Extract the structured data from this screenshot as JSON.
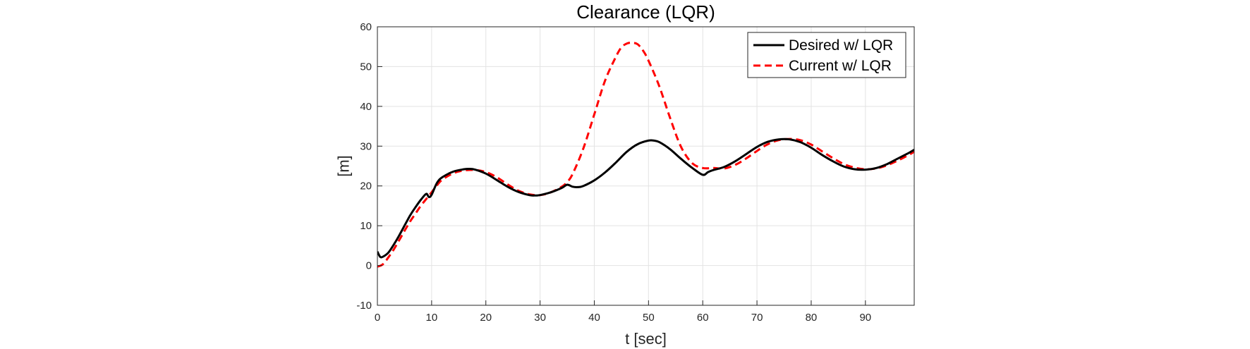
{
  "chart_data": {
    "type": "line",
    "title": "Clearance (LQR)",
    "xlabel": "t [sec]",
    "ylabel": "[m]",
    "xlim": [
      0,
      99
    ],
    "ylim": [
      -10,
      60
    ],
    "xticks": [
      0,
      10,
      20,
      30,
      40,
      50,
      60,
      70,
      80,
      90
    ],
    "yticks": [
      -10,
      0,
      10,
      20,
      30,
      40,
      50,
      60
    ],
    "grid": true,
    "legend_position": "top-right",
    "series": [
      {
        "name": "Desired w/ LQR",
        "color": "#000000",
        "style": "solid",
        "x": [
          0,
          0.5,
          1,
          2,
          3,
          4,
          5,
          6,
          7,
          8,
          9,
          9.5,
          10,
          11,
          12,
          14,
          16,
          17,
          18,
          20,
          22,
          24,
          26,
          28,
          29,
          30,
          32,
          34,
          35,
          36,
          37,
          38,
          40,
          42,
          44,
          46,
          48,
          50,
          51,
          52,
          54,
          56,
          58,
          60,
          61,
          62,
          64,
          66,
          68,
          70,
          72,
          74,
          76,
          78,
          80,
          82,
          84,
          86,
          88,
          90,
          92,
          94,
          96,
          98,
          99
        ],
        "y": [
          3.5,
          2.2,
          2.2,
          3.2,
          5.2,
          7.5,
          10,
          12.5,
          14.6,
          16.5,
          18,
          17.2,
          17.8,
          20.8,
          22.2,
          23.6,
          24.2,
          24.3,
          24.1,
          23.1,
          21.5,
          19.8,
          18.5,
          17.7,
          17.6,
          17.7,
          18.4,
          19.5,
          20.3,
          19.8,
          19.7,
          20,
          21.4,
          23.4,
          25.9,
          28.6,
          30.5,
          31.4,
          31.4,
          31,
          29.2,
          26.8,
          24.6,
          22.8,
          23.5,
          24,
          24.8,
          26.2,
          28,
          29.8,
          31.1,
          31.7,
          31.7,
          31,
          29.6,
          27.8,
          26.2,
          24.9,
          24.2,
          24.1,
          24.5,
          25.5,
          26.9,
          28.3,
          29.1
        ]
      },
      {
        "name": "Current w/ LQR",
        "color": "#ff0000",
        "style": "dashed",
        "x": [
          0,
          1,
          2,
          3,
          4,
          5,
          6,
          7,
          8,
          9,
          10,
          11,
          12,
          14,
          16,
          18,
          20,
          22,
          24,
          26,
          28,
          30,
          32,
          34,
          35,
          36,
          38,
          40,
          42,
          44,
          45,
          46,
          47,
          48,
          49,
          50,
          52,
          54,
          56,
          58,
          60,
          62,
          64,
          66,
          68,
          70,
          72,
          74,
          76,
          78,
          80,
          82,
          84,
          86,
          88,
          90,
          92,
          94,
          96,
          98,
          99
        ],
        "y": [
          -0.3,
          0.3,
          2,
          4,
          6.3,
          8.7,
          11,
          13,
          15,
          16.7,
          18.4,
          20.2,
          21.6,
          23.2,
          23.9,
          24,
          23.5,
          22.2,
          20.4,
          18.8,
          17.9,
          17.7,
          18.4,
          19.8,
          21,
          23,
          29.5,
          38,
          46.5,
          52.5,
          54.8,
          55.8,
          56,
          55.6,
          54,
          51.5,
          45,
          37,
          29.8,
          25.8,
          24.5,
          24.5,
          24.4,
          25.3,
          26.9,
          28.8,
          30.5,
          31.5,
          31.8,
          31.5,
          30.4,
          28.7,
          27,
          25.5,
          24.6,
          24.2,
          24.4,
          25.2,
          26.4,
          27.8,
          28.6
        ]
      }
    ]
  }
}
